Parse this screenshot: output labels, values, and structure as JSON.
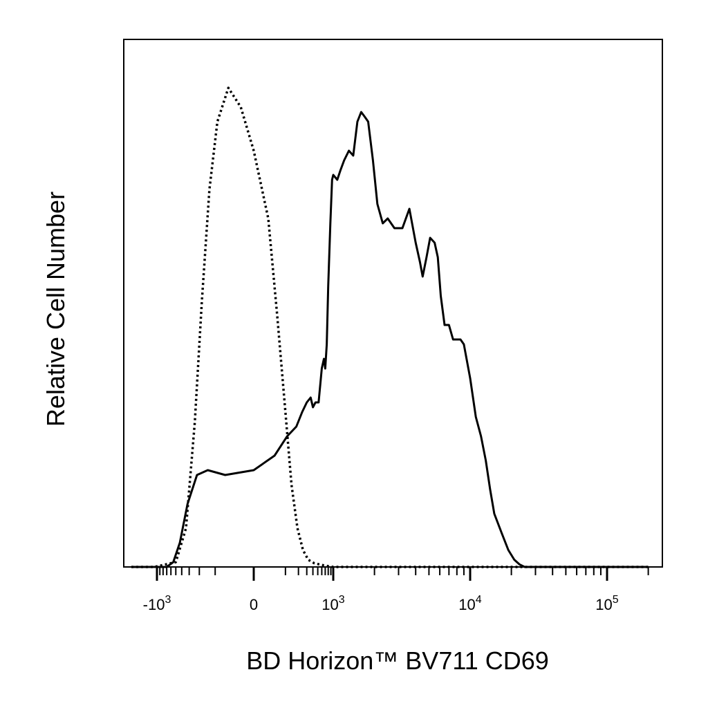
{
  "chart_data": {
    "type": "line",
    "xscale": "biexponential",
    "xlim": [
      -2500,
      200000
    ],
    "ylim": [
      0,
      1.0
    ],
    "xlabel": "BD Horizon™ BV711 CD69",
    "ylabel": "Relative Cell Number",
    "grid": false,
    "legend": "none",
    "x_ticks": [
      {
        "value": -1000,
        "base": "-10",
        "exp": "3"
      },
      {
        "value": 0,
        "base": "0",
        "exp": ""
      },
      {
        "value": 1000,
        "base": "10",
        "exp": "3"
      },
      {
        "value": 10000,
        "base": "10",
        "exp": "4"
      },
      {
        "value": 100000,
        "base": "10",
        "exp": "5"
      }
    ],
    "minor_ticks": [
      -900,
      -800,
      -700,
      -600,
      -500,
      -400,
      -300,
      -200,
      -100,
      100,
      200,
      300,
      400,
      500,
      600,
      700,
      800,
      900,
      2000,
      3000,
      4000,
      5000,
      6000,
      7000,
      8000,
      9000,
      20000,
      30000,
      40000,
      50000,
      60000,
      70000,
      80000,
      90000,
      200000
    ],
    "series": [
      {
        "style": "dotted",
        "x": [
          -2500,
          -1100,
          -500,
          -340,
          -240,
          -180,
          -130,
          -90,
          -50,
          -20,
          0,
          30,
          60,
          100,
          140,
          190,
          250,
          320,
          420,
          600,
          1000,
          200000
        ],
        "y": [
          0,
          0,
          0.01,
          0.08,
          0.3,
          0.55,
          0.78,
          0.92,
          0.99,
          0.95,
          0.86,
          0.72,
          0.52,
          0.32,
          0.17,
          0.08,
          0.035,
          0.015,
          0.008,
          0.004,
          0,
          0
        ]
      },
      {
        "style": "solid",
        "x": [
          -2500,
          -700,
          -550,
          -430,
          -320,
          -220,
          -140,
          -60,
          0,
          50,
          110,
          180,
          240,
          300,
          360,
          400,
          450,
          520,
          600,
          660,
          700,
          750,
          800,
          880,
          950,
          1000,
          1070,
          1130,
          1200,
          1300,
          1400,
          1500,
          1600,
          1700,
          1800,
          1950,
          2100,
          2300,
          2500,
          2800,
          3200,
          3600,
          4000,
          4300,
          4500,
          4800,
          5100,
          5500,
          5800,
          6100,
          6500,
          7000,
          7500,
          8000,
          8500,
          9000,
          10000,
          11000,
          12000,
          13000,
          14000,
          15000,
          17000,
          19000,
          21000,
          23000,
          25000,
          28000,
          32000,
          38000,
          45000,
          55000,
          70000,
          200000
        ],
        "y": [
          0,
          0,
          0.01,
          0.05,
          0.13,
          0.19,
          0.2,
          0.19,
          0.2,
          0.23,
          0.27,
          0.29,
          0.32,
          0.34,
          0.35,
          0.33,
          0.34,
          0.34,
          0.41,
          0.43,
          0.41,
          0.46,
          0.58,
          0.71,
          0.8,
          0.81,
          0.8,
          0.82,
          0.84,
          0.86,
          0.85,
          0.92,
          0.94,
          0.93,
          0.92,
          0.84,
          0.75,
          0.71,
          0.72,
          0.7,
          0.7,
          0.74,
          0.67,
          0.63,
          0.6,
          0.64,
          0.68,
          0.67,
          0.64,
          0.56,
          0.5,
          0.5,
          0.47,
          0.47,
          0.47,
          0.46,
          0.39,
          0.31,
          0.27,
          0.22,
          0.16,
          0.11,
          0.07,
          0.035,
          0.015,
          0.005,
          0,
          0,
          0,
          0,
          0,
          0,
          0,
          0
        ]
      }
    ]
  }
}
